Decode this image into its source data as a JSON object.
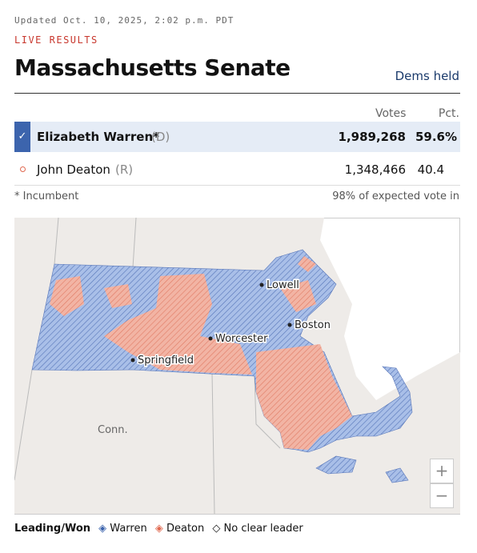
{
  "header": {
    "updated": "Updated Oct. 10, 2025, 2:02 p.m. PDT",
    "label": "LIVE RESULTS",
    "title": "Massachusetts Senate",
    "status": "Dems held"
  },
  "table": {
    "columns": [
      "Votes",
      "Pct."
    ],
    "rows": [
      {
        "name": "Elizabeth Warren*",
        "party": "(D)",
        "votes": "1,989,268",
        "pct": "59.6%"
      },
      {
        "name": "John Deaton",
        "party": "(R)",
        "votes": "1,348,466",
        "pct": "40.4"
      }
    ]
  },
  "footnote": "* Incumbent",
  "reporting": "98% of expected vote in",
  "map": {
    "cities": [
      "Lowell",
      "Boston",
      "Worcester",
      "Springfield"
    ],
    "state_label": "Conn.",
    "controls": [
      "+",
      "−"
    ]
  },
  "legend": {
    "title": "Leading/Won",
    "items": [
      "Warren",
      "Deaton",
      "No clear leader"
    ]
  }
}
